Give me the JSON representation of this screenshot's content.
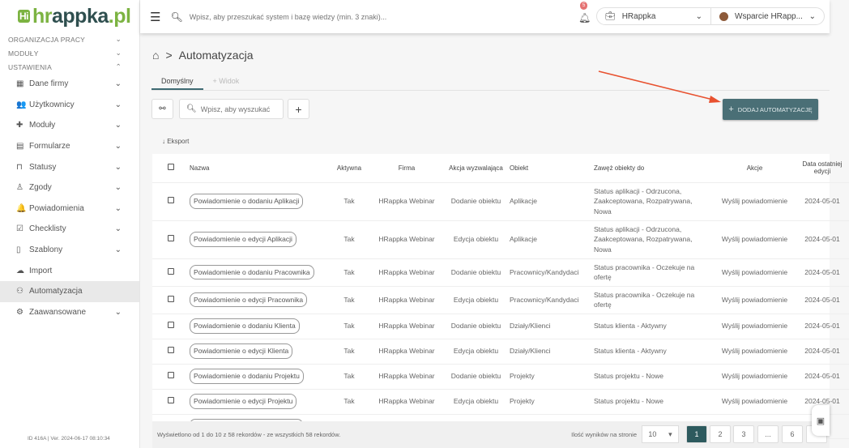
{
  "logo": {
    "badge": "Hi",
    "part1": "hr",
    "part2": "appka",
    "part3": ".pl"
  },
  "sidebar": {
    "sections": [
      "ORGANIZACJA PRACY",
      "MODUŁY",
      "USTAWIENIA"
    ],
    "items": [
      {
        "label": "Dane firmy",
        "icon": "building-icon",
        "glyph": "▦",
        "chevron": true
      },
      {
        "label": "Użytkownicy",
        "icon": "users-icon",
        "glyph": "👥",
        "chevron": true
      },
      {
        "label": "Moduły",
        "icon": "puzzle-icon",
        "glyph": "✚",
        "chevron": true
      },
      {
        "label": "Formularze",
        "icon": "form-icon",
        "glyph": "▤",
        "chevron": true
      },
      {
        "label": "Statusy",
        "icon": "bookmark-icon",
        "glyph": "⊓",
        "chevron": true
      },
      {
        "label": "Zgody",
        "icon": "user-check-icon",
        "glyph": "♙",
        "chevron": true
      },
      {
        "label": "Powiadomienia",
        "icon": "bell-icon",
        "glyph": "🔔",
        "chevron": true
      },
      {
        "label": "Checklisty",
        "icon": "checklist-icon",
        "glyph": "☑",
        "chevron": true
      },
      {
        "label": "Szablony",
        "icon": "template-icon",
        "glyph": "▯",
        "chevron": true
      },
      {
        "label": "Import",
        "icon": "cloud-upload-icon",
        "glyph": "☁",
        "chevron": false
      },
      {
        "label": "Automatyzacja",
        "icon": "robot-icon",
        "glyph": "⚇",
        "chevron": false,
        "active": true
      },
      {
        "label": "Zaawansowane",
        "icon": "gears-icon",
        "glyph": "⚙",
        "chevron": true
      }
    ],
    "version": "ID 416A | Ver. 2024-06-17 08:10:34"
  },
  "header": {
    "search_placeholder": "Wpisz, aby przeszukać system i bazę wiedzy (min. 3 znaki)...",
    "notif_count": "5",
    "company": "HRappka",
    "user": "Wsparcie HRapp..."
  },
  "breadcrumb": {
    "sep": ">",
    "title": "Automatyzacja"
  },
  "tabs": [
    "Domyślny",
    "+ Widok"
  ],
  "toolbar": {
    "search_placeholder": "Wpisz, aby wyszukać",
    "add_label": "DODAJ AUTOMATYZACJĘ",
    "export": "Eksport"
  },
  "table": {
    "columns": [
      "Nazwa",
      "Aktywna",
      "Firma",
      "Akcja wyzwalająca",
      "Obiekt",
      "Zawęż obiekty do",
      "Akcje",
      "Data ostatniej edycji"
    ],
    "rows": [
      [
        "Powiadomienie o dodaniu Aplikacji",
        "Tak",
        "HRappka Webinar",
        "Dodanie obiektu",
        "Aplikacje",
        "Status aplikacji - Odrzucona, Zaakceptowana, Rozpatrywana, Nowa",
        "Wyślij powiadomienie",
        "2024-05-01"
      ],
      [
        "Powiadomienie o edycji Aplikacji",
        "Tak",
        "HRappka Webinar",
        "Edycja obiektu",
        "Aplikacje",
        "Status aplikacji - Odrzucona, Zaakceptowana, Rozpatrywana, Nowa",
        "Wyślij powiadomienie",
        "2024-05-01"
      ],
      [
        "Powiadomienie o dodaniu Pracownika",
        "Tak",
        "HRappka Webinar",
        "Dodanie obiektu",
        "Pracownicy/Kandydaci",
        "Status pracownika - Oczekuje na ofertę",
        "Wyślij powiadomienie",
        "2024-05-01"
      ],
      [
        "Powiadomienie o edycji Pracownika",
        "Tak",
        "HRappka Webinar",
        "Edycja obiektu",
        "Pracownicy/Kandydaci",
        "Status pracownika - Oczekuje na ofertę",
        "Wyślij powiadomienie",
        "2024-05-01"
      ],
      [
        "Powiadomienie o dodaniu Klienta",
        "Tak",
        "HRappka Webinar",
        "Dodanie obiektu",
        "Działy/Klienci",
        "Status klienta - Aktywny",
        "Wyślij powiadomienie",
        "2024-05-01"
      ],
      [
        "Powiadomienie o edycji Klienta",
        "Tak",
        "HRappka Webinar",
        "Edycja obiektu",
        "Działy/Klienci",
        "Status klienta - Aktywny",
        "Wyślij powiadomienie",
        "2024-05-01"
      ],
      [
        "Powiadomienie o dodaniu Projektu",
        "Tak",
        "HRappka Webinar",
        "Dodanie obiektu",
        "Projekty",
        "Status projektu - Nowe",
        "Wyślij powiadomienie",
        "2024-05-01"
      ],
      [
        "Powiadomienie o edycji Projektu",
        "Tak",
        "HRappka Webinar",
        "Edycja obiektu",
        "Projekty",
        "Status projektu - Nowe",
        "Wyślij powiadomienie",
        "2024-05-01"
      ]
    ]
  },
  "footer": {
    "summary": "Wyświetlono od 1 do 10 z 58 rekordów - ze wszystkich 58 rekordów.",
    "per_page_label": "Ilość wyników na stronie",
    "per_page": "10",
    "pages": [
      "1",
      "2",
      "3",
      "...",
      "6"
    ],
    "current_page": "1"
  },
  "colors": {
    "accent": "#4a6f76",
    "active_page": "#2d5a5e",
    "logo_green": "#7cb342",
    "arrow": "#e8512f"
  }
}
